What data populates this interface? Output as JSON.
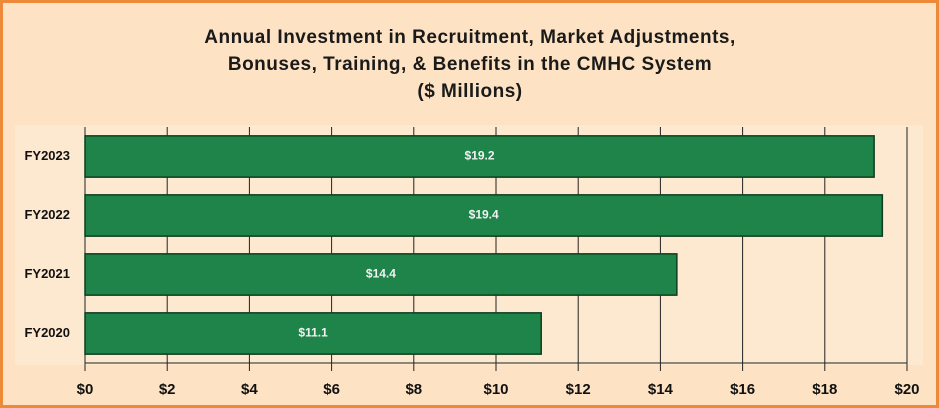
{
  "chart_data": {
    "type": "bar",
    "orientation": "horizontal",
    "title": [
      "Annual Investment in Recruitment, Market Adjustments,",
      "Bonuses, Training, & Benefits in the CMHC System",
      "($ Millions)"
    ],
    "categories": [
      "FY2023",
      "FY2022",
      "FY2021",
      "FY2020"
    ],
    "values": [
      19.2,
      19.4,
      14.4,
      11.1
    ],
    "value_labels": [
      "$19.2",
      "$19.4",
      "$14.4",
      "$11.1"
    ],
    "color": "#1e8449",
    "xlim": [
      0,
      20
    ],
    "xticks": [
      {
        "value": 0,
        "label": "$0"
      },
      {
        "value": 2,
        "label": "$2"
      },
      {
        "value": 4,
        "label": "$4"
      },
      {
        "value": 6,
        "label": "$6"
      },
      {
        "value": 8,
        "label": "$8"
      },
      {
        "value": 10,
        "label": "$10"
      },
      {
        "value": 12,
        "label": "$12"
      },
      {
        "value": 14,
        "label": "$14"
      },
      {
        "value": 16,
        "label": "$16"
      },
      {
        "value": 18,
        "label": "$18"
      },
      {
        "value": 20,
        "label": "$20"
      }
    ],
    "grid": true
  }
}
